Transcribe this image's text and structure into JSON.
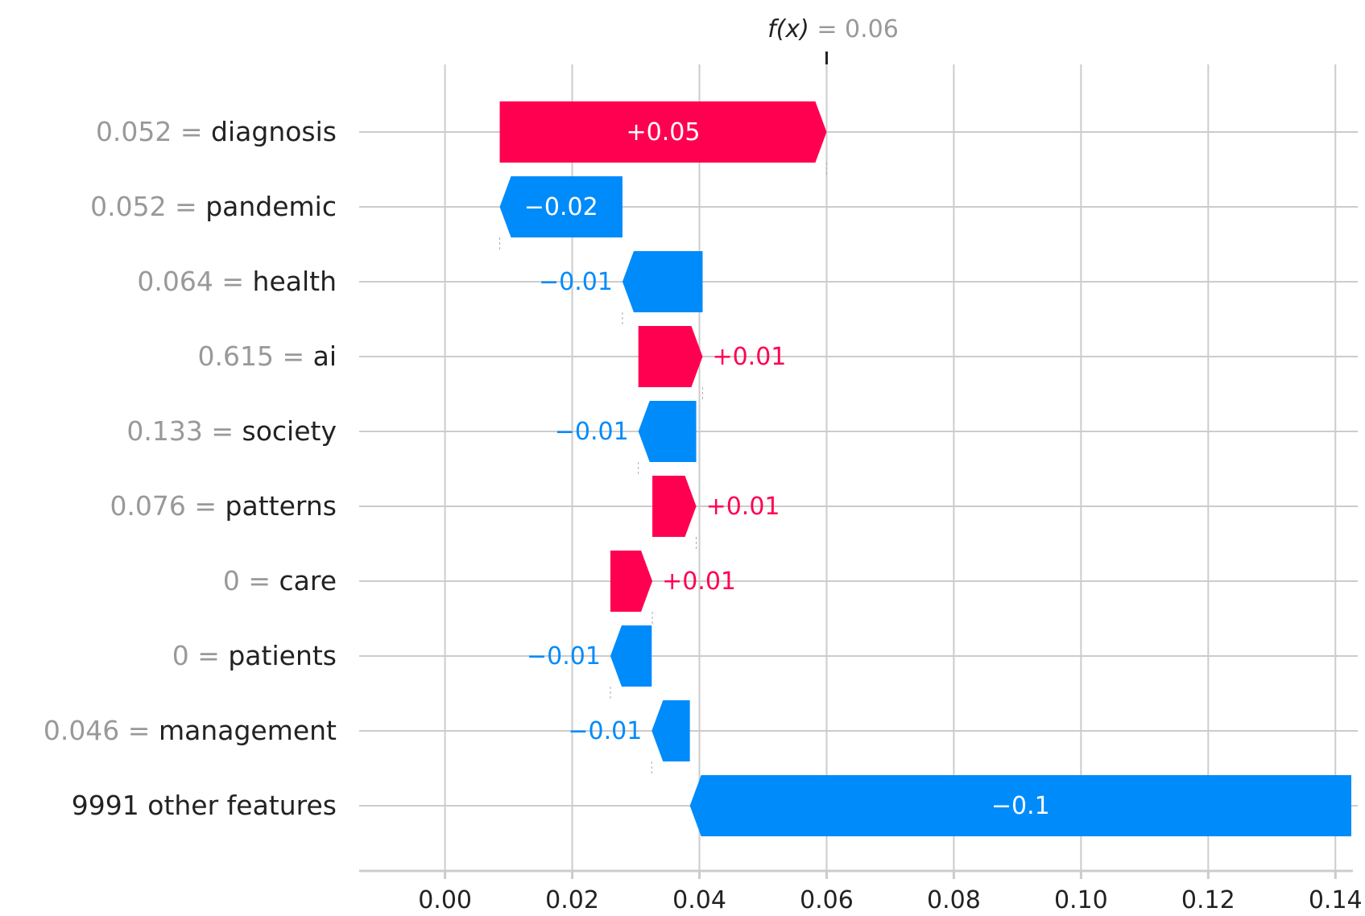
{
  "chart_data": {
    "type": "waterfall",
    "title_prefix": "f(x)",
    "title_eq": " = ",
    "final_value_label": "0.06",
    "final_value": 0.06,
    "base_value": 0.1385,
    "xlim": [
      -0.0135,
      0.1425
    ],
    "x_ticks": [
      0.0,
      0.02,
      0.04,
      0.06,
      0.08,
      0.1,
      0.12,
      0.14
    ],
    "x_tick_labels": [
      "0.00",
      "0.02",
      "0.04",
      "0.06",
      "0.08",
      "0.10",
      "0.12",
      "0.14"
    ],
    "grid": true,
    "colors": {
      "positive": "#ff0051",
      "negative": "#008bfb",
      "grid": "#cccccc",
      "axis": "#cccccc",
      "label_value": "#999999",
      "label_name": "#222222"
    },
    "rows": [
      {
        "feature_value": "0.052",
        "eq": " = ",
        "feature": "diagnosis",
        "start": 0.0086,
        "end": 0.06,
        "label": "+0.05",
        "sign": "pos",
        "label_pos": "inside"
      },
      {
        "feature_value": "0.052",
        "eq": " = ",
        "feature": "pandemic",
        "start": 0.0279,
        "end": 0.0086,
        "label": "−0.02",
        "sign": "neg",
        "label_pos": "inside"
      },
      {
        "feature_value": "0.064",
        "eq": " = ",
        "feature": "health",
        "start": 0.0405,
        "end": 0.0279,
        "label": "−0.01",
        "sign": "neg",
        "label_pos": "outside"
      },
      {
        "feature_value": "0.615",
        "eq": " = ",
        "feature": "ai",
        "start": 0.0304,
        "end": 0.0405,
        "label": "+0.01",
        "sign": "pos",
        "label_pos": "outside"
      },
      {
        "feature_value": "0.133",
        "eq": " = ",
        "feature": "society",
        "start": 0.0395,
        "end": 0.0304,
        "label": "−0.01",
        "sign": "neg",
        "label_pos": "outside"
      },
      {
        "feature_value": "0.076",
        "eq": " = ",
        "feature": "patterns",
        "start": 0.0326,
        "end": 0.0395,
        "label": "+0.01",
        "sign": "pos",
        "label_pos": "outside"
      },
      {
        "feature_value": "0",
        "eq": " = ",
        "feature": "care",
        "start": 0.026,
        "end": 0.0326,
        "label": "+0.01",
        "sign": "pos",
        "label_pos": "outside"
      },
      {
        "feature_value": "0",
        "eq": " = ",
        "feature": "patients",
        "start": 0.0325,
        "end": 0.026,
        "label": "−0.01",
        "sign": "neg",
        "label_pos": "outside"
      },
      {
        "feature_value": "0.046",
        "eq": " = ",
        "feature": "management",
        "start": 0.0385,
        "end": 0.0325,
        "label": "−0.01",
        "sign": "neg",
        "label_pos": "outside"
      },
      {
        "feature_value": "",
        "eq": "",
        "feature": "9991 other features",
        "start": 0.1425,
        "end": 0.0385,
        "label": "−0.1",
        "sign": "neg",
        "label_pos": "inside"
      }
    ]
  }
}
